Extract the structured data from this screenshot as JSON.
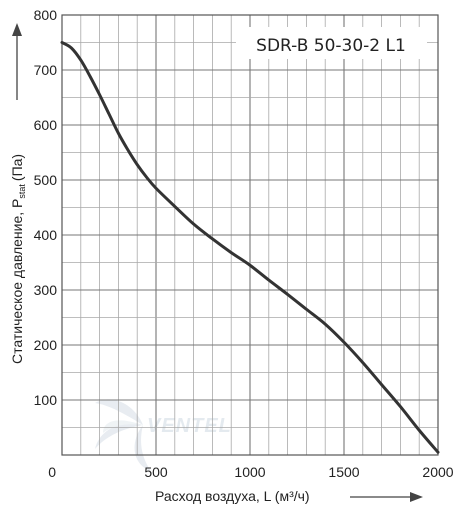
{
  "chart_data": {
    "type": "line",
    "title": "SDR-B 50-30-2 L1",
    "xlabel": "Расход воздуха, L (м³/ч)",
    "ylabel": "Статическое давление, P",
    "ylabel_subscript": "stat",
    "ylabel_unit": "(Па)",
    "xlim": [
      0,
      2000
    ],
    "ylim": [
      0,
      800
    ],
    "x_ticks": [
      0,
      500,
      1000,
      1500,
      2000
    ],
    "y_ticks": [
      100,
      200,
      300,
      400,
      500,
      600,
      700,
      800
    ],
    "grid": true,
    "series": [
      {
        "x": [
          0,
          50,
          100,
          150,
          200,
          250,
          300,
          350,
          400,
          450,
          500,
          600,
          700,
          800,
          900,
          1000,
          1100,
          1200,
          1300,
          1400,
          1500,
          1600,
          1700,
          1800,
          1900,
          2000
        ],
        "y": [
          750,
          740,
          718,
          688,
          655,
          620,
          585,
          555,
          528,
          505,
          485,
          452,
          420,
          393,
          368,
          345,
          318,
          292,
          265,
          238,
          205,
          168,
          128,
          88,
          45,
          5
        ]
      }
    ],
    "watermark": "VENTEL"
  }
}
